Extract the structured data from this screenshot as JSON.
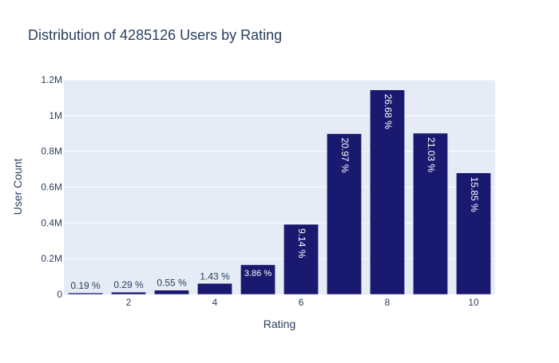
{
  "chart_data": {
    "type": "bar",
    "title": "Distribution of 4285126 Users by Rating",
    "xlabel": "Rating",
    "ylabel": "User Count",
    "x": [
      1,
      2,
      3,
      4,
      5,
      6,
      7,
      8,
      9,
      10
    ],
    "values": [
      8100,
      12400,
      23600,
      61300,
      165400,
      391700,
      898600,
      1143300,
      901200,
      679200
    ],
    "labels": [
      "0.19 %",
      "0.29 %",
      "0.55 %",
      "1.43 %",
      "3.86 %",
      "9.14 %",
      "20.97 %",
      "26.68 %",
      "21.03 %",
      "15.85 %"
    ],
    "xticks": [
      2,
      4,
      6,
      8,
      10
    ],
    "xtick_labels": [
      "2",
      "4",
      "6",
      "8",
      "10"
    ],
    "ylim": [
      0,
      1200000
    ],
    "yticks": [
      0,
      200000,
      400000,
      600000,
      800000,
      1000000,
      1200000
    ],
    "ytick_labels": [
      "0",
      "0.2M",
      "0.4M",
      "0.6M",
      "0.8M",
      "1M",
      "1.2M"
    ],
    "grid": true,
    "colors": {
      "bar": "#191970",
      "plot_bg": "#e5ecf6",
      "grid": "#ffffff",
      "text": "#2a3f5f",
      "label_inside": "#ffffff"
    }
  }
}
